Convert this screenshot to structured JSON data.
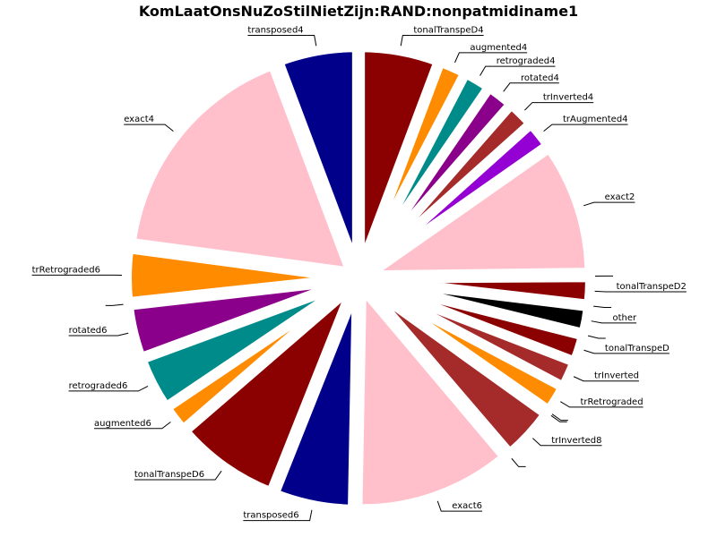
{
  "chart_data": {
    "type": "pie",
    "title": "KomLaatOnsNuZoStilNietZijn:RAND:nonpatmidiname1",
    "exploded": true,
    "start_angle_deg": 90,
    "direction": "clockwise",
    "slices": [
      {
        "label": "tonalTranspeD4",
        "value": 4.8,
        "color": "#8B0000"
      },
      {
        "label": "augmented4",
        "value": 1.6,
        "color": "#FF8C00"
      },
      {
        "label": "retrograded4",
        "value": 1.6,
        "color": "#008B8B"
      },
      {
        "label": "rotated4",
        "value": 1.6,
        "color": "#8B008B"
      },
      {
        "label": "trInverted4",
        "value": 1.6,
        "color": "#A52A2A"
      },
      {
        "label": "trAugmented4",
        "value": 1.6,
        "color": "#9400D3"
      },
      {
        "label": "exact2",
        "value": 8.0,
        "color": "#FFC0CB"
      },
      {
        "label": "",
        "value": 0.1,
        "color": "#FFC0CB"
      },
      {
        "label": "tonalTranspeD2",
        "value": 1.6,
        "color": "#8B0000"
      },
      {
        "label": "",
        "value": 0.1,
        "color": "#8B0000"
      },
      {
        "label": "other",
        "value": 1.6,
        "color": "#000000"
      },
      {
        "label": "",
        "value": 0.1,
        "color": "#000000"
      },
      {
        "label": "tonalTranspeD",
        "value": 1.6,
        "color": "#8B0000"
      },
      {
        "label": "trInverted",
        "value": 1.6,
        "color": "#A52A2A"
      },
      {
        "label": "trRetrograded",
        "value": 1.6,
        "color": "#FF8C00"
      },
      {
        "label": "",
        "value": 0.1,
        "color": "#FF8C00"
      },
      {
        "label": "",
        "value": 0.1,
        "color": "#FF8C00"
      },
      {
        "label": "trInverted8",
        "value": 3.2,
        "color": "#A52A2A"
      },
      {
        "label": "",
        "value": 0.1,
        "color": "#A52A2A"
      },
      {
        "label": "exact6",
        "value": 9.6,
        "color": "#FFC0CB"
      },
      {
        "label": "transposed6",
        "value": 4.8,
        "color": "#00008B"
      },
      {
        "label": "tonalTranspeD6",
        "value": 6.4,
        "color": "#8B0000"
      },
      {
        "label": "augmented6",
        "value": 1.6,
        "color": "#FF8C00"
      },
      {
        "label": "retrograded6",
        "value": 3.2,
        "color": "#008B8B"
      },
      {
        "label": "rotated6",
        "value": 3.2,
        "color": "#8B008B"
      },
      {
        "label": "",
        "value": 0.1,
        "color": "#8B008B"
      },
      {
        "label": "trRetrograded6",
        "value": 3.2,
        "color": "#FF8C00"
      },
      {
        "label": "exact4",
        "value": 14.4,
        "color": "#FFC0CB"
      },
      {
        "label": "transposed4",
        "value": 4.8,
        "color": "#00008B"
      }
    ]
  }
}
